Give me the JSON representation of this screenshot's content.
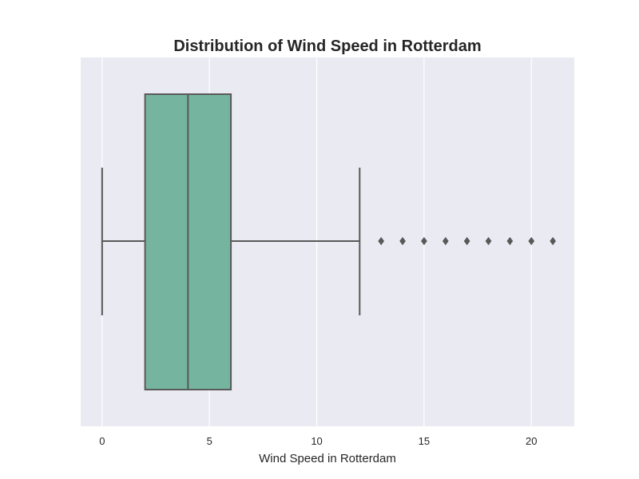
{
  "chart_data": {
    "type": "box",
    "orientation": "horizontal",
    "title": "Distribution of Wind Speed in Rotterdam",
    "xlabel": "Wind Speed in Rotterdam",
    "ylabel": "",
    "xlim": [
      -1,
      22
    ],
    "xticks": [
      0,
      5,
      10,
      15,
      20
    ],
    "xtick_labels": [
      "0",
      "5",
      "10",
      "15",
      "20"
    ],
    "grid": true,
    "box": {
      "whisker_low": 0,
      "q1": 2,
      "median": 4,
      "q3": 6,
      "whisker_high": 12,
      "outliers": [
        13,
        14,
        15,
        16,
        17,
        18,
        19,
        20,
        21
      ]
    },
    "colors": {
      "box_fill": "#75b5a0",
      "line": "#595959",
      "plot_background": "#eaeaf2",
      "grid": "#ffffff"
    }
  }
}
